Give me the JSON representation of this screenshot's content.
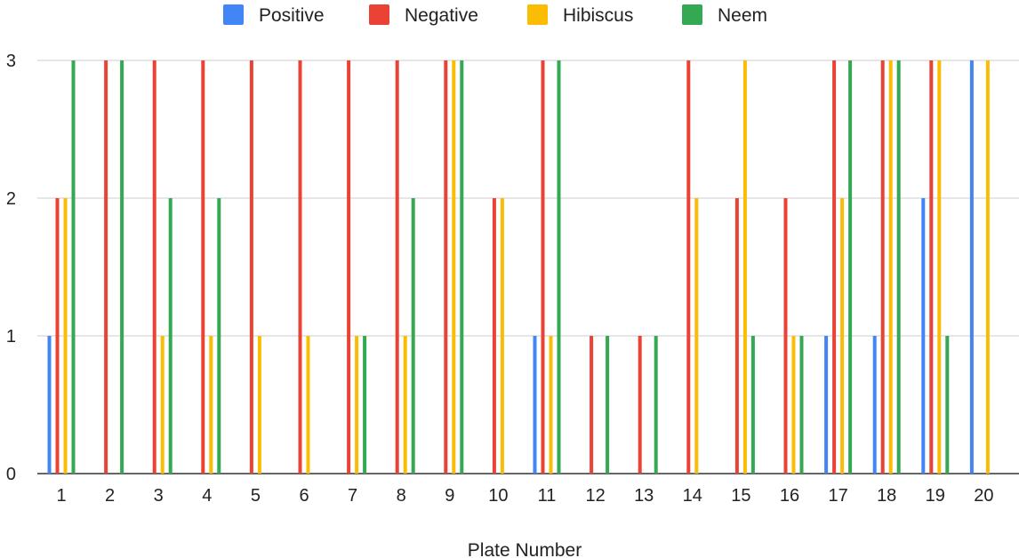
{
  "chart_data": {
    "type": "bar",
    "title": "",
    "xlabel": "Plate Number",
    "ylabel": "",
    "ylim": [
      0,
      3
    ],
    "yticks": [
      0,
      1,
      2,
      3
    ],
    "grid": true,
    "legend_position": "top",
    "categories": [
      "1",
      "2",
      "3",
      "4",
      "5",
      "6",
      "7",
      "8",
      "9",
      "10",
      "11",
      "12",
      "13",
      "14",
      "15",
      "16",
      "17",
      "18",
      "19",
      "20"
    ],
    "series": [
      {
        "name": "Positive",
        "color": "#4285f4",
        "values": [
          1,
          0,
          0,
          0,
          0,
          0,
          0,
          0,
          0,
          0,
          1,
          0,
          0,
          0,
          0,
          0,
          1,
          1,
          2,
          3
        ]
      },
      {
        "name": "Negative",
        "color": "#ea4335",
        "values": [
          2,
          3,
          3,
          3,
          3,
          3,
          3,
          3,
          3,
          2,
          3,
          1,
          1,
          3,
          2,
          2,
          3,
          3,
          3,
          0
        ]
      },
      {
        "name": "Hibiscus",
        "color": "#fbbc04",
        "values": [
          2,
          0,
          1,
          1,
          1,
          1,
          1,
          1,
          3,
          2,
          1,
          0,
          0,
          2,
          3,
          1,
          2,
          3,
          3,
          3
        ]
      },
      {
        "name": "Neem",
        "color": "#34a853",
        "values": [
          3,
          3,
          2,
          2,
          0,
          0,
          1,
          2,
          3,
          0,
          3,
          1,
          1,
          0,
          1,
          1,
          3,
          3,
          1,
          0
        ]
      }
    ]
  }
}
